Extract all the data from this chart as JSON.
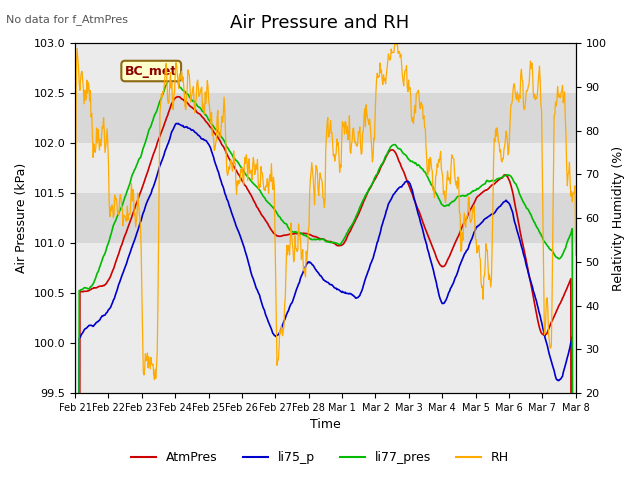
{
  "title": "Air Pressure and RH",
  "top_left_text": "No data for f_AtmPres",
  "annotation_box": "BC_met",
  "xlabel": "Time",
  "ylabel_left": "Air Pressure (kPa)",
  "ylabel_right": "Relativity Humidity (%)",
  "ylim_left": [
    99.5,
    103.0
  ],
  "ylim_right": [
    20,
    100
  ],
  "yticks_left": [
    99.5,
    100.0,
    100.5,
    101.0,
    101.5,
    102.0,
    102.5,
    103.0
  ],
  "yticks_right": [
    20,
    30,
    40,
    50,
    60,
    70,
    80,
    90,
    100
  ],
  "xtick_labels": [
    "Feb 21",
    "Feb 22",
    "Feb 23",
    "Feb 24",
    "Feb 25",
    "Feb 26",
    "Feb 27",
    "Feb 28",
    "Mar 1",
    "Mar 2",
    "Mar 3",
    "Mar 4",
    "Mar 5",
    "Mar 6",
    "Mar 7",
    "Mar 8"
  ],
  "n_ticks": 16,
  "colors": {
    "AtmPres": "#cc0000",
    "li75_p": "#0000cc",
    "li77_pres": "#00bb00",
    "RH": "#ffaa00",
    "band_fill": "#d8d8d8",
    "bg": "#ebebeb"
  },
  "title_fontsize": 13,
  "axis_fontsize": 9,
  "tick_fontsize": 8
}
